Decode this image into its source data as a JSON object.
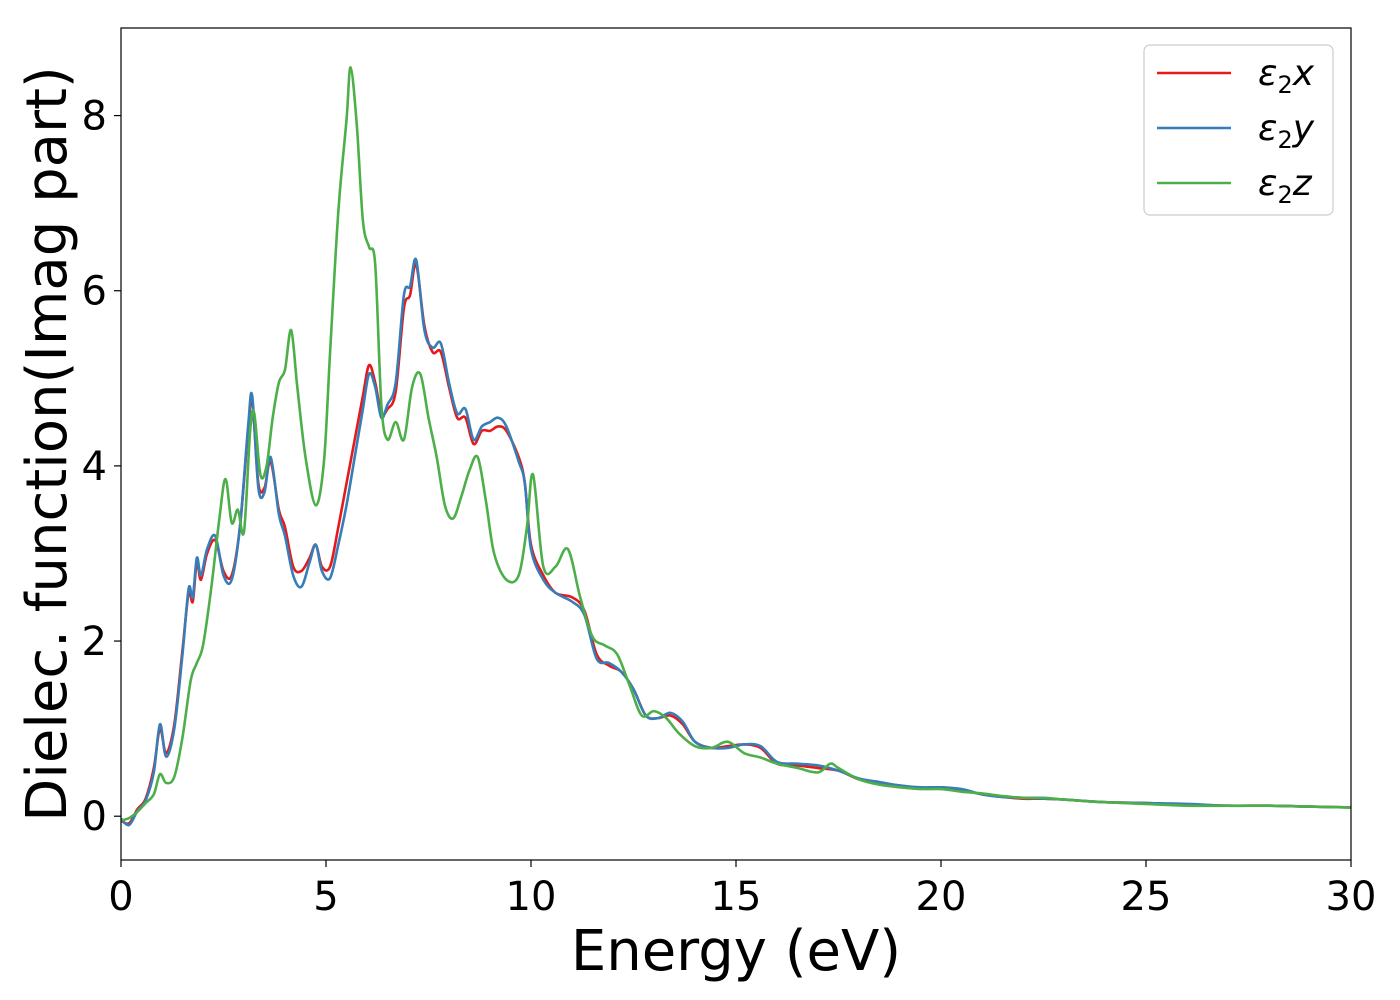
{
  "chart_data": {
    "type": "line",
    "xlabel": "Energy (eV)",
    "ylabel": "Dielec. function(Imag part)",
    "xlim": [
      0,
      30
    ],
    "ylim": [
      -0.5,
      9.0
    ],
    "xticks": [
      0,
      5,
      10,
      15,
      20,
      25,
      30
    ],
    "xtick_labels": [
      "0",
      "5",
      "10",
      "15",
      "20",
      "25",
      "30"
    ],
    "yticks": [
      0,
      2,
      4,
      6,
      8
    ],
    "ytick_labels": [
      "0",
      "2",
      "4",
      "6",
      "8"
    ],
    "grid": false,
    "legend_position": "top-right",
    "series": [
      {
        "name": "ε2x",
        "legend_main": "ε",
        "legend_sub": "2",
        "legend_var": "x",
        "color": "#e41a1c",
        "x": [
          0,
          0.2,
          0.4,
          0.6,
          0.8,
          0.95,
          1.1,
          1.3,
          1.5,
          1.65,
          1.75,
          1.85,
          1.95,
          2.1,
          2.3,
          2.5,
          2.7,
          2.9,
          3.1,
          3.2,
          3.35,
          3.5,
          3.65,
          3.85,
          4.0,
          4.2,
          4.4,
          4.6,
          4.75,
          4.9,
          5.1,
          5.3,
          5.5,
          5.7,
          5.9,
          6.05,
          6.2,
          6.35,
          6.5,
          6.7,
          6.9,
          7.05,
          7.2,
          7.4,
          7.6,
          7.8,
          8.0,
          8.2,
          8.4,
          8.6,
          8.8,
          9.0,
          9.2,
          9.4,
          9.7,
          9.85,
          10.0,
          10.3,
          10.6,
          11.0,
          11.3,
          11.6,
          11.9,
          12.2,
          12.5,
          12.8,
          13.1,
          13.4,
          13.7,
          14.0,
          14.4,
          14.8,
          15.2,
          15.6,
          16.0,
          16.5,
          17.0,
          17.5,
          18.0,
          18.5,
          19.0,
          19.5,
          20.0,
          20.5,
          21.0,
          21.5,
          22.0,
          22.5,
          23.0,
          24.0,
          25.0,
          26.0,
          27.0,
          28.0,
          29.0,
          30.0
        ],
        "y": [
          -0.05,
          -0.08,
          0.08,
          0.2,
          0.55,
          1.0,
          0.72,
          1.05,
          1.9,
          2.55,
          2.45,
          2.9,
          2.7,
          3.0,
          3.15,
          2.8,
          2.75,
          3.3,
          4.4,
          4.75,
          3.8,
          3.75,
          4.05,
          3.5,
          3.3,
          2.85,
          2.8,
          2.95,
          3.1,
          2.85,
          2.85,
          3.3,
          3.8,
          4.3,
          4.8,
          5.15,
          4.95,
          4.6,
          4.65,
          4.85,
          5.8,
          5.95,
          6.3,
          5.6,
          5.3,
          5.3,
          4.9,
          4.55,
          4.55,
          4.25,
          4.4,
          4.4,
          4.45,
          4.4,
          4.1,
          3.8,
          3.1,
          2.75,
          2.55,
          2.5,
          2.35,
          1.85,
          1.72,
          1.65,
          1.45,
          1.15,
          1.12,
          1.15,
          1.05,
          0.85,
          0.78,
          0.8,
          0.82,
          0.78,
          0.6,
          0.58,
          0.55,
          0.52,
          0.42,
          0.38,
          0.35,
          0.32,
          0.33,
          0.3,
          0.25,
          0.22,
          0.2,
          0.2,
          0.19,
          0.16,
          0.15,
          0.13,
          0.12,
          0.12,
          0.11,
          0.1
        ]
      },
      {
        "name": "ε2y",
        "legend_main": "ε",
        "legend_sub": "2",
        "legend_var": "y",
        "color": "#377eb8",
        "x": [
          0,
          0.2,
          0.4,
          0.6,
          0.8,
          0.95,
          1.1,
          1.3,
          1.5,
          1.65,
          1.75,
          1.85,
          1.95,
          2.1,
          2.3,
          2.5,
          2.7,
          2.9,
          3.1,
          3.2,
          3.35,
          3.5,
          3.65,
          3.85,
          4.0,
          4.2,
          4.4,
          4.6,
          4.75,
          4.9,
          5.1,
          5.3,
          5.5,
          5.7,
          5.9,
          6.05,
          6.2,
          6.35,
          6.5,
          6.7,
          6.9,
          7.05,
          7.2,
          7.4,
          7.6,
          7.8,
          8.0,
          8.2,
          8.4,
          8.6,
          8.8,
          9.0,
          9.2,
          9.4,
          9.7,
          9.85,
          10.0,
          10.3,
          10.6,
          11.0,
          11.3,
          11.6,
          11.9,
          12.2,
          12.5,
          12.8,
          13.1,
          13.4,
          13.7,
          14.0,
          14.4,
          14.8,
          15.2,
          15.6,
          16.0,
          16.5,
          17.0,
          17.5,
          18.0,
          18.5,
          19.0,
          19.5,
          20.0,
          20.5,
          21.0,
          21.5,
          22.0,
          22.5,
          23.0,
          24.0,
          25.0,
          26.0,
          27.0,
          28.0,
          29.0,
          30.0
        ],
        "y": [
          -0.03,
          -0.1,
          0.06,
          0.18,
          0.5,
          1.05,
          0.68,
          1.0,
          1.85,
          2.6,
          2.5,
          2.95,
          2.75,
          3.05,
          3.2,
          2.75,
          2.7,
          3.3,
          4.45,
          4.8,
          3.75,
          3.7,
          4.1,
          3.45,
          3.2,
          2.75,
          2.62,
          2.9,
          3.1,
          2.8,
          2.72,
          3.1,
          3.55,
          4.1,
          4.65,
          5.05,
          4.9,
          4.55,
          4.7,
          4.95,
          5.95,
          6.05,
          6.35,
          5.55,
          5.35,
          5.4,
          4.95,
          4.6,
          4.65,
          4.3,
          4.45,
          4.5,
          4.55,
          4.45,
          4.05,
          3.8,
          3.05,
          2.7,
          2.55,
          2.45,
          2.3,
          1.8,
          1.75,
          1.65,
          1.45,
          1.15,
          1.12,
          1.18,
          1.08,
          0.85,
          0.78,
          0.78,
          0.82,
          0.8,
          0.62,
          0.6,
          0.58,
          0.52,
          0.43,
          0.39,
          0.35,
          0.33,
          0.33,
          0.31,
          0.25,
          0.22,
          0.21,
          0.2,
          0.19,
          0.16,
          0.15,
          0.14,
          0.12,
          0.12,
          0.11,
          0.1
        ]
      },
      {
        "name": "ε2z",
        "legend_main": "ε",
        "legend_sub": "2",
        "legend_var": "z",
        "color": "#4daf4a",
        "x": [
          0,
          0.2,
          0.4,
          0.6,
          0.8,
          0.95,
          1.1,
          1.3,
          1.5,
          1.7,
          1.85,
          2.0,
          2.2,
          2.4,
          2.55,
          2.7,
          2.85,
          3.0,
          3.15,
          3.25,
          3.4,
          3.55,
          3.7,
          3.85,
          4.0,
          4.15,
          4.3,
          4.5,
          4.75,
          4.95,
          5.1,
          5.3,
          5.5,
          5.6,
          5.75,
          5.9,
          6.05,
          6.2,
          6.35,
          6.5,
          6.7,
          6.9,
          7.1,
          7.3,
          7.5,
          7.7,
          7.9,
          8.1,
          8.3,
          8.5,
          8.7,
          8.9,
          9.1,
          9.4,
          9.7,
          9.9,
          10.05,
          10.3,
          10.6,
          10.9,
          11.2,
          11.5,
          11.8,
          12.1,
          12.4,
          12.7,
          13.0,
          13.3,
          13.6,
          14.0,
          14.4,
          14.8,
          15.2,
          15.6,
          16.0,
          16.5,
          17.0,
          17.3,
          17.5,
          18.0,
          18.5,
          19.0,
          19.5,
          20.0,
          20.5,
          21.0,
          21.5,
          22.0,
          22.5,
          23.0,
          24.0,
          25.0,
          26.0,
          27.0,
          28.0,
          29.0,
          30.0
        ],
        "y": [
          -0.05,
          -0.02,
          0.05,
          0.15,
          0.25,
          0.48,
          0.38,
          0.45,
          0.9,
          1.55,
          1.75,
          1.95,
          2.6,
          3.4,
          3.85,
          3.35,
          3.5,
          3.25,
          4.4,
          4.6,
          3.9,
          4.0,
          4.55,
          4.95,
          5.1,
          5.55,
          4.9,
          4.1,
          3.55,
          4.05,
          5.3,
          6.9,
          7.95,
          8.55,
          7.9,
          6.8,
          6.5,
          6.3,
          4.7,
          4.3,
          4.5,
          4.3,
          4.9,
          5.05,
          4.55,
          4.1,
          3.55,
          3.4,
          3.65,
          3.95,
          4.1,
          3.6,
          3.0,
          2.7,
          2.75,
          3.3,
          3.9,
          2.85,
          2.85,
          3.05,
          2.5,
          2.05,
          1.95,
          1.85,
          1.5,
          1.15,
          1.2,
          1.12,
          0.95,
          0.8,
          0.78,
          0.85,
          0.72,
          0.67,
          0.6,
          0.55,
          0.5,
          0.6,
          0.55,
          0.42,
          0.36,
          0.33,
          0.31,
          0.31,
          0.28,
          0.26,
          0.23,
          0.21,
          0.21,
          0.19,
          0.16,
          0.14,
          0.12,
          0.12,
          0.12,
          0.11,
          0.1
        ]
      }
    ]
  }
}
